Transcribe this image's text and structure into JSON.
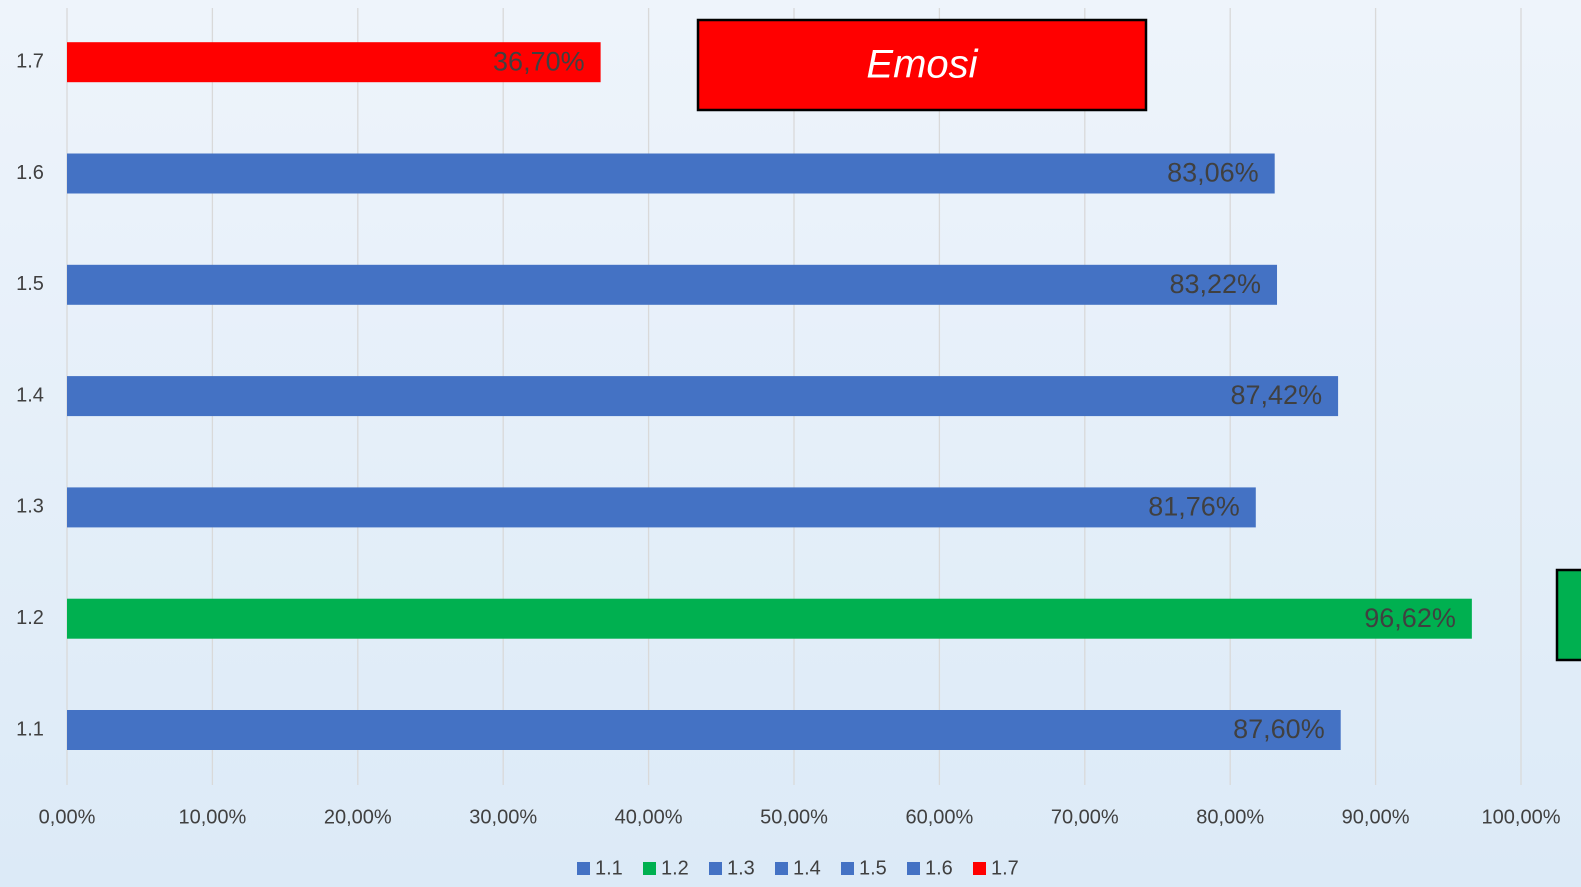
{
  "chart_data": {
    "type": "bar",
    "orientation": "horizontal",
    "categories": [
      "1.1",
      "1.2",
      "1.3",
      "1.4",
      "1.5",
      "1.6",
      "1.7"
    ],
    "values": [
      87.6,
      96.62,
      81.76,
      87.42,
      83.22,
      83.06,
      36.7
    ],
    "value_labels": [
      "87,60%",
      "96,62%",
      "81,76%",
      "87,42%",
      "83,22%",
      "83,06%",
      "36,70%"
    ],
    "colors": [
      "#4472c4",
      "#00b050",
      "#4472c4",
      "#4472c4",
      "#4472c4",
      "#4472c4",
      "#ff0000"
    ],
    "xlim": [
      0,
      100
    ],
    "xticks": [
      {
        "value": 0,
        "label": "0,00%"
      },
      {
        "value": 10,
        "label": "10,00%"
      },
      {
        "value": 20,
        "label": "20,00%"
      },
      {
        "value": 30,
        "label": "30,00%"
      },
      {
        "value": 40,
        "label": "40,00%"
      },
      {
        "value": 50,
        "label": "50,00%"
      },
      {
        "value": 60,
        "label": "60,00%"
      },
      {
        "value": 70,
        "label": "70,00%"
      },
      {
        "value": 80,
        "label": "80,00%"
      },
      {
        "value": 90,
        "label": "90,00%"
      },
      {
        "value": 100,
        "label": "100,00%"
      }
    ],
    "grid": true,
    "legend": "bottom",
    "annotation": {
      "text": "Emosi",
      "color": "#ff0000"
    }
  }
}
